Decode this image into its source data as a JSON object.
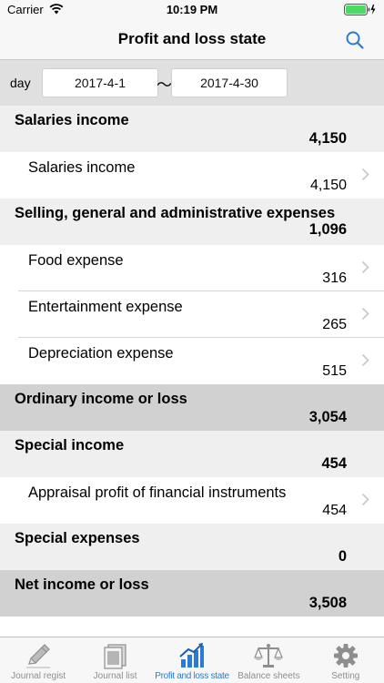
{
  "status_bar": {
    "carrier": "Carrier",
    "time": "10:19 PM"
  },
  "nav": {
    "title": "Profit and loss state"
  },
  "date_range": {
    "label": "day",
    "from": "2017-4-1",
    "separator": "～",
    "to": "2017-4-30"
  },
  "sections": [
    {
      "title": "Salaries income",
      "amount": "4,150",
      "dark": false,
      "items": [
        {
          "title": "Salaries income",
          "amount": "4,150"
        }
      ]
    },
    {
      "title": "Selling, general and administrative expenses",
      "amount": "1,096",
      "dark": false,
      "items": [
        {
          "title": "Food expense",
          "amount": "316"
        },
        {
          "title": "Entertainment expense",
          "amount": "265"
        },
        {
          "title": "Depreciation expense",
          "amount": "515"
        }
      ]
    },
    {
      "title": "Ordinary income or loss",
      "amount": "3,054",
      "dark": true,
      "items": []
    },
    {
      "title": "Special income",
      "amount": "454",
      "dark": false,
      "items": [
        {
          "title": "Appraisal profit of financial instruments",
          "amount": "454"
        }
      ]
    },
    {
      "title": "Special expenses",
      "amount": "0",
      "dark": false,
      "items": []
    },
    {
      "title": "Net income or loss",
      "amount": "3,508",
      "dark": true,
      "items": []
    }
  ],
  "tabs": [
    {
      "label": "Journal regist",
      "icon": "pencil-icon",
      "active": false
    },
    {
      "label": "Journal list",
      "icon": "journal-list-icon",
      "active": false
    },
    {
      "label": "Profit and loss state",
      "icon": "bar-chart-icon",
      "active": true
    },
    {
      "label": "Balance sheets",
      "icon": "scales-icon",
      "active": false
    },
    {
      "label": "Setting",
      "icon": "gear-icon",
      "active": false
    }
  ],
  "colors": {
    "accent": "#2a7ad6",
    "battery": "#4cd964",
    "section_bg": "#efefef",
    "section_dark_bg": "#d1d1d1"
  }
}
